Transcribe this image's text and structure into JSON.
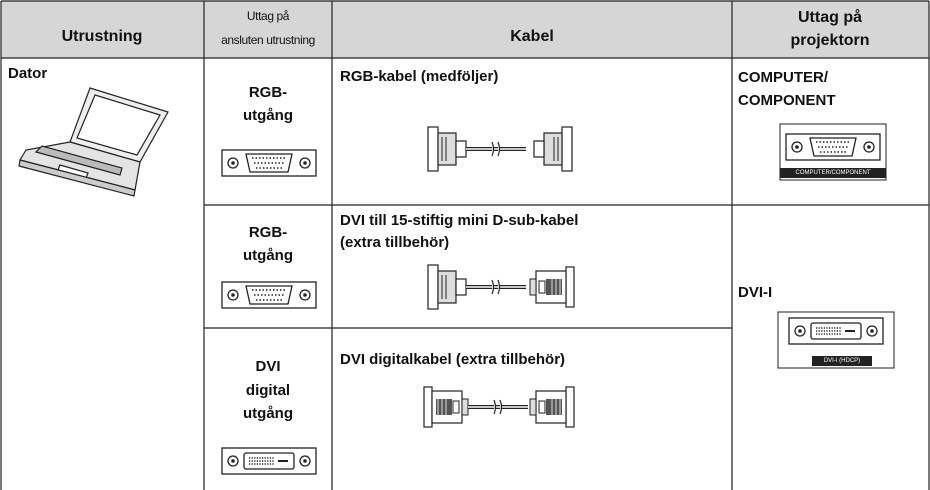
{
  "table": {
    "header": [
      "Utrustning",
      [
        "Uttag på",
        "ansluten utrustning"
      ],
      "Kabel",
      [
        "Uttag på",
        "projektorn"
      ]
    ],
    "equipment": "Dator",
    "rows": [
      {
        "output": [
          "RGB-",
          "utgång"
        ],
        "cable": "RGB-kabel (medföljer)"
      },
      {
        "output": [
          "RGB-",
          "utgång"
        ],
        "cable": [
          "DVI till 15-stiftig mini D-sub-kabel",
          "(extra tillbehör)"
        ]
      },
      {
        "output": [
          "DVI",
          "digital",
          "utgång"
        ],
        "cable": "DVI digitalkabel (extra tillbehör)"
      }
    ],
    "projector": [
      {
        "label": [
          "COMPUTER/",
          "COMPONENT"
        ],
        "port_label": "COMPUTER/COMPONENT"
      },
      {
        "label": "DVI-I",
        "port_label": "DVI-I (HDCP)"
      }
    ]
  }
}
